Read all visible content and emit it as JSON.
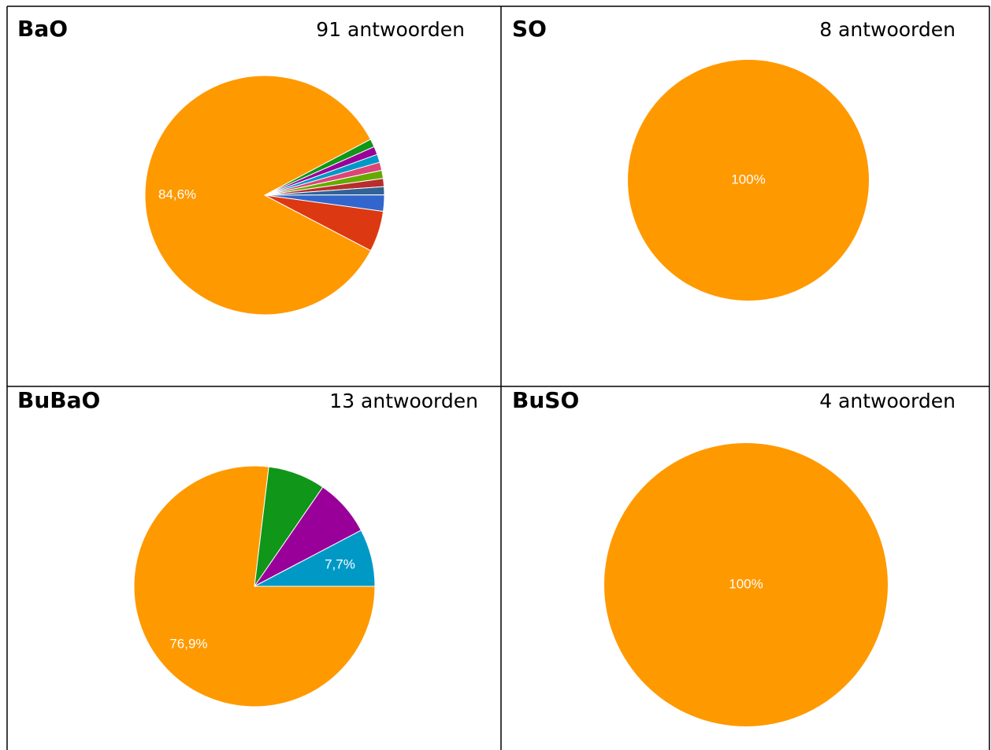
{
  "chart_data": [
    {
      "type": "pie",
      "title": "BaO",
      "subtitle": "91 antwoorden",
      "values": [
        84.6,
        1.1,
        1.1,
        1.1,
        1.1,
        1.1,
        1.1,
        1.1,
        2.2,
        5.5
      ],
      "value_labels": [
        "84,6%",
        null,
        null,
        null,
        null,
        null,
        null,
        null,
        null,
        null
      ],
      "colors": [
        "#ff9900",
        "#109618",
        "#990099",
        "#0099c6",
        "#dd4477",
        "#66aa00",
        "#b82e2e",
        "#316395",
        "#3366cc",
        "#dc3912"
      ]
    },
    {
      "type": "pie",
      "title": "SO",
      "subtitle": "8 antwoorden",
      "values": [
        100
      ],
      "value_labels": [
        "100%"
      ],
      "colors": [
        "#ff9900"
      ]
    },
    {
      "type": "pie",
      "title": "BuBaO",
      "subtitle": "13 antwoorden",
      "values": [
        76.9,
        7.7,
        7.7,
        7.7
      ],
      "value_labels": [
        "76,9%",
        null,
        null,
        "7,7%"
      ],
      "colors": [
        "#ff9900",
        "#109618",
        "#990099",
        "#0099c6"
      ]
    },
    {
      "type": "pie",
      "title": "BuSO",
      "subtitle": "4 antwoorden",
      "values": [
        100
      ],
      "value_labels": [
        "100%"
      ],
      "colors": [
        "#ff9900"
      ]
    }
  ]
}
